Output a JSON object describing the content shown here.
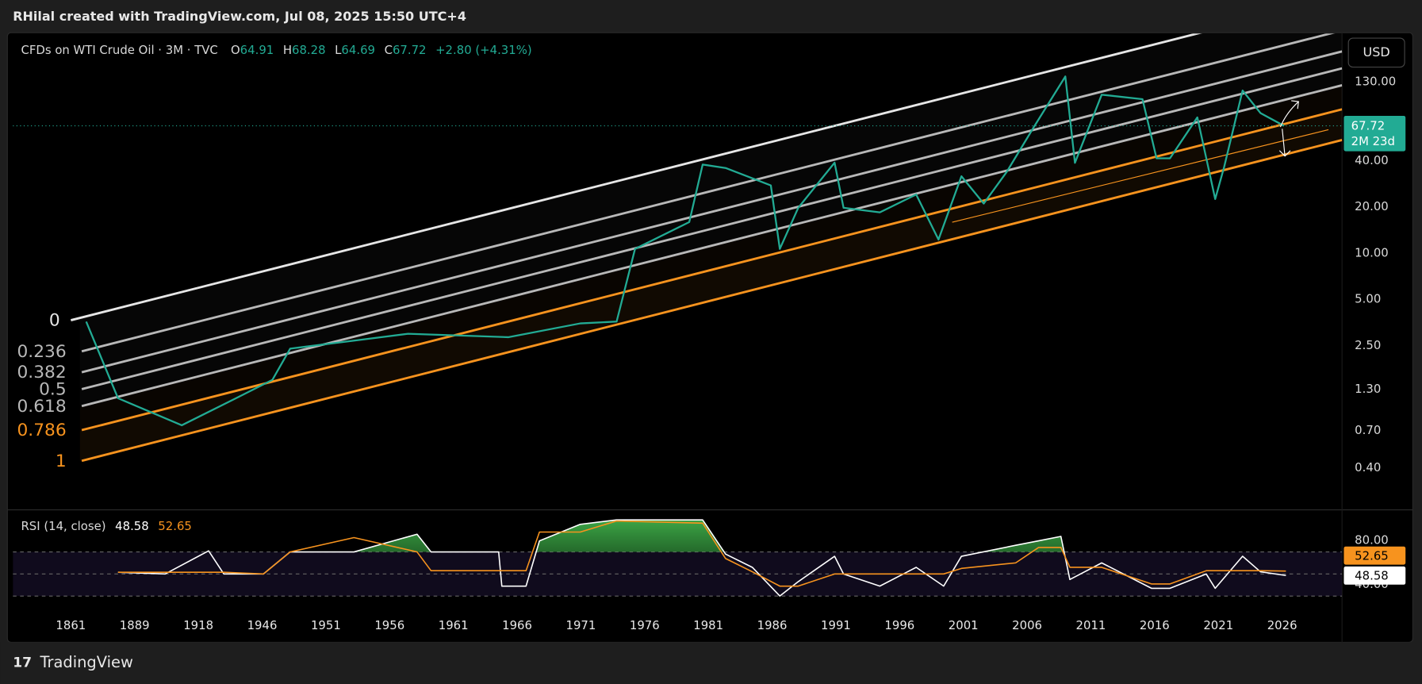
{
  "attribution": "RHilal created with TradingView.com, Jul 08, 2025 15:50 UTC+4",
  "brand": "TradingView",
  "chart_data": [
    {
      "type": "line",
      "title": "CFDs on WTI Crude Oil · 3M · TVC",
      "ohlc": [
        {
          "label": "O",
          "value": 64.91
        },
        {
          "label": "H",
          "value": 68.28
        },
        {
          "label": "L",
          "value": 64.69
        },
        {
          "label": "C",
          "value": 67.72
        }
      ],
      "change": "+2.80 (+4.31%)",
      "currency": "USD",
      "countdown": "2M 23d",
      "log_scale": true,
      "grid": false,
      "color": "#22ab94",
      "x": [
        0.24,
        0.74,
        1.74,
        2.59,
        3.16,
        3.44,
        4.58,
        5.29,
        6.86,
        7.99,
        8.56,
        8.85,
        9.7,
        9.91,
        10.27,
        10.98,
        11.12,
        11.41,
        11.98,
        12.12,
        12.69,
        13.26,
        13.61,
        13.97,
        14.32,
        14.68,
        15.11,
        15.6,
        15.75,
        16.17,
        16.81,
        17.03,
        17.24,
        17.67,
        17.95,
        18.09,
        18.38,
        18.66,
        19.03
      ],
      "values": [
        3.6,
        1.14,
        0.76,
        1.14,
        1.5,
        2.4,
        2.75,
        3.0,
        2.85,
        3.5,
        3.6,
        10.7,
        16,
        37.9,
        36,
        27.7,
        10.7,
        19.8,
        39,
        19.8,
        18.5,
        24.2,
        12.3,
        31.8,
        21.1,
        34,
        67,
        142,
        38.9,
        108,
        101,
        41.6,
        41.6,
        76.9,
        22.6,
        36.4,
        115,
        82,
        67.72
      ],
      "xlim": [
        -0.91,
        19.94
      ],
      "xticks": [
        {
          "value": 0,
          "label": "1861"
        },
        {
          "value": 1,
          "label": "1889"
        },
        {
          "value": 2,
          "label": "1918"
        },
        {
          "value": 3,
          "label": "1946"
        },
        {
          "value": 4,
          "label": "1951"
        },
        {
          "value": 5,
          "label": "1956"
        },
        {
          "value": 6,
          "label": "1961"
        },
        {
          "value": 7,
          "label": "1966"
        },
        {
          "value": 8,
          "label": "1971"
        },
        {
          "value": 9,
          "label": "1976"
        },
        {
          "value": 10,
          "label": "1981"
        },
        {
          "value": 11,
          "label": "1986"
        },
        {
          "value": 12,
          "label": "1991"
        },
        {
          "value": 13,
          "label": "1996"
        },
        {
          "value": 14,
          "label": "2001"
        },
        {
          "value": 15,
          "label": "2006"
        },
        {
          "value": 16,
          "label": "2011"
        },
        {
          "value": 17,
          "label": "2016"
        },
        {
          "value": 18,
          "label": "2021"
        },
        {
          "value": 19,
          "label": "2026"
        }
      ],
      "ylim": [
        0.22,
        270
      ],
      "yticks": [
        {
          "value": 130,
          "label": "130.00"
        },
        {
          "value": 40,
          "label": "40.00"
        },
        {
          "value": 20,
          "label": "20.00"
        },
        {
          "value": 10,
          "label": "10.00"
        },
        {
          "value": 5,
          "label": "5.00"
        },
        {
          "value": 2.5,
          "label": "2.50"
        },
        {
          "value": 1.3,
          "label": "1.30"
        },
        {
          "value": 0.7,
          "label": "0.70"
        },
        {
          "value": 0.4,
          "label": "0.40"
        }
      ],
      "fib": {
        "levels": [
          0,
          0.236,
          0.382,
          0.5,
          0.618,
          0.786,
          1
        ],
        "colors": [
          "#e6e6e6",
          "#b8b8b8",
          "#b8b8b8",
          "#b8b8b8",
          "#b8b8b8",
          "#f7931e",
          "#f7931e"
        ]
      }
    },
    {
      "type": "line",
      "title": "RSI (14, close)",
      "x": [
        0.74,
        1.48,
        2.16,
        2.4,
        3.02,
        3.44,
        4.44,
        5.43,
        5.65,
        6.71,
        6.76,
        7.14,
        7.35,
        7.99,
        8.56,
        9.91,
        10.27,
        10.69,
        11.12,
        11.41,
        11.98,
        12.12,
        12.69,
        13.26,
        13.69,
        13.97,
        14.82,
        15.18,
        15.53,
        15.67,
        16.17,
        16.95,
        17.24,
        17.81,
        17.95,
        18.38,
        18.66,
        19.06
      ],
      "series": [
        {
          "color": "#ffffff",
          "values": [
            51.6,
            50,
            71,
            50,
            50,
            70,
            70,
            86,
            70,
            70,
            39,
            39,
            80,
            95,
            99,
            99,
            68,
            56,
            30,
            43,
            66,
            50,
            39,
            56,
            39,
            66,
            76,
            80,
            84,
            45,
            60,
            37,
            37,
            50,
            37,
            66,
            52,
            48.58
          ]
        },
        {
          "color": "#f7931e",
          "values": [
            51.6,
            51.6,
            51.6,
            51.6,
            50,
            70,
            83,
            70,
            53,
            53,
            53,
            53,
            88,
            88,
            98,
            96,
            64,
            52,
            39,
            39,
            50,
            50,
            50,
            50,
            50,
            55,
            60,
            74,
            74,
            56,
            56,
            41,
            41,
            53,
            53,
            53,
            53,
            52.65
          ]
        }
      ],
      "xlim": [
        -0.91,
        19.94
      ],
      "ylim": [
        21,
        104
      ],
      "yticks": [
        {
          "value": 80,
          "label": "80.00"
        },
        {
          "value": 40,
          "label": "40.00"
        }
      ],
      "bands": [
        30,
        50,
        70
      ]
    }
  ]
}
